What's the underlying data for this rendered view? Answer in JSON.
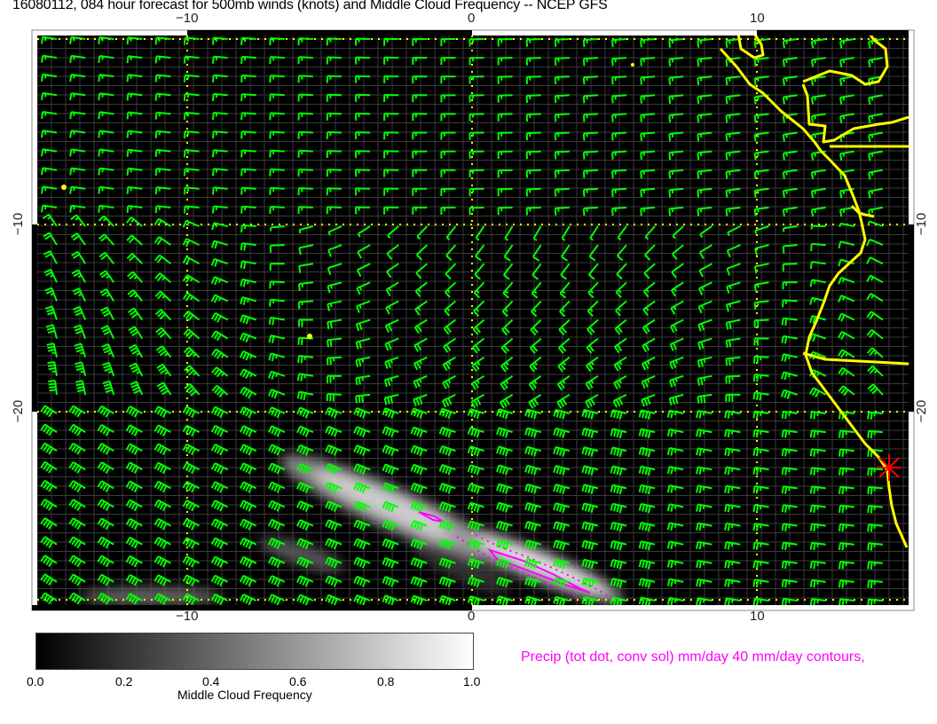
{
  "title": "16080112, 084 hour forecast for 500mb winds (knots) and Middle Cloud Frequency -- NCEP GFS",
  "axes": {
    "x_ticks": [
      "−10",
      "0",
      "10"
    ],
    "y_ticks": [
      "−10",
      "−20"
    ]
  },
  "colorbar": {
    "label": "Middle Cloud Frequency",
    "ticks": [
      "0.0",
      "0.2",
      "0.4",
      "0.6",
      "0.8",
      "1.0"
    ],
    "range": [
      0.0,
      1.0
    ],
    "colormap": "black-to-white grayscale"
  },
  "precip_legend": "Precip (tot dot, conv sol) mm/day 40 mm/day contours,",
  "colors": {
    "background": "#000000",
    "wind_barbs": "#00ff00",
    "coastline": "#ffff00",
    "gridlines_dotted": "#ffff00",
    "precip_contours": "#ff00ff",
    "marker": "#ff0000"
  },
  "marker_icon": "red-star-marker"
}
